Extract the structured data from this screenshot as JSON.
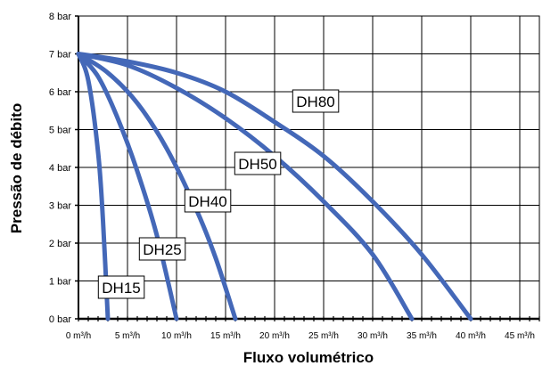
{
  "chart_data": {
    "type": "line",
    "xlabel": "Fluxo volumétrico",
    "ylabel": "Pressão de débito",
    "xlim": [
      0,
      47
    ],
    "ylim": [
      0,
      8
    ],
    "x_ticks": [
      0,
      5,
      10,
      15,
      20,
      25,
      30,
      35,
      40,
      45
    ],
    "x_tick_labels": [
      "0 m³/h",
      "5 m³/h",
      "10 m³/h",
      "15 m³/h",
      "20 m³/h",
      "25 m³/h",
      "30 m³/h",
      "35 m³/h",
      "40 m³/h",
      "45 m³/h"
    ],
    "y_ticks": [
      0,
      1,
      2,
      3,
      4,
      5,
      6,
      7,
      8
    ],
    "y_tick_labels": [
      "0 bar",
      "1 bar",
      "2 bar",
      "3 bar",
      "4 bar",
      "5 bar",
      "6 bar",
      "7 bar",
      "8 bar"
    ],
    "grid": true,
    "line_color": "#4468b8",
    "series": [
      {
        "name": "DH15",
        "points": [
          [
            0,
            7
          ],
          [
            1,
            6.3
          ],
          [
            2,
            4.4
          ],
          [
            2.5,
            2.6
          ],
          [
            3,
            0
          ]
        ]
      },
      {
        "name": "DH25",
        "points": [
          [
            0,
            7
          ],
          [
            2,
            6.4
          ],
          [
            4,
            5.3
          ],
          [
            6,
            3.9
          ],
          [
            8,
            2.2
          ],
          [
            10,
            0
          ]
        ]
      },
      {
        "name": "DH40",
        "points": [
          [
            0,
            7
          ],
          [
            3,
            6.5
          ],
          [
            6,
            5.7
          ],
          [
            9,
            4.5
          ],
          [
            12,
            2.9
          ],
          [
            14,
            1.6
          ],
          [
            16,
            0
          ]
        ]
      },
      {
        "name": "DH50",
        "points": [
          [
            0,
            7
          ],
          [
            5,
            6.7
          ],
          [
            10,
            6.1
          ],
          [
            15,
            5.3
          ],
          [
            20,
            4.3
          ],
          [
            25,
            3.1
          ],
          [
            30,
            1.7
          ],
          [
            34,
            0
          ]
        ]
      },
      {
        "name": "DH80",
        "points": [
          [
            0,
            7
          ],
          [
            5,
            6.8
          ],
          [
            10,
            6.5
          ],
          [
            15,
            6.0
          ],
          [
            20,
            5.2
          ],
          [
            25,
            4.3
          ],
          [
            30,
            3.1
          ],
          [
            35,
            1.7
          ],
          [
            40,
            0
          ]
        ]
      }
    ]
  }
}
